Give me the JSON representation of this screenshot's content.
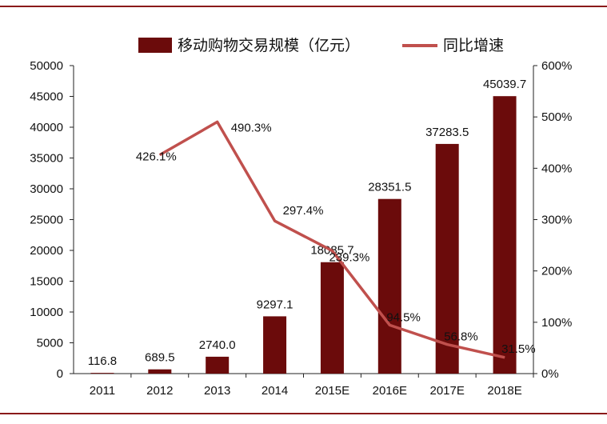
{
  "chart_data": {
    "type": "bar",
    "categories": [
      "2011",
      "2012",
      "2013",
      "2014",
      "2015E",
      "2016E",
      "2017E",
      "2018E"
    ],
    "series": [
      {
        "name": "移动购物交易规模（亿元）",
        "type": "bar",
        "axis": "left",
        "color": "#6b0b0b",
        "values": [
          116.8,
          689.5,
          2740.0,
          9297.1,
          18085.7,
          28351.5,
          37283.5,
          45039.7
        ],
        "labels": [
          "116.8",
          "689.5",
          "2740.0",
          "9297.1",
          "18085.7",
          "28351.5",
          "37283.5",
          "45039.7"
        ]
      },
      {
        "name": "同比增速",
        "type": "line",
        "axis": "right",
        "color": "#c0504d",
        "values": [
          null,
          426.1,
          490.3,
          297.4,
          239.3,
          94.5,
          56.8,
          31.5
        ],
        "labels": [
          null,
          "426.1%",
          "490.3%",
          "297.4%",
          "239.3%",
          "94.5%",
          "56.8%",
          "31.5%"
        ]
      }
    ],
    "y_left": {
      "lim": [
        0,
        50000
      ],
      "ticks": [
        "0",
        "5000",
        "10000",
        "15000",
        "20000",
        "25000",
        "30000",
        "35000",
        "40000",
        "45000",
        "50000"
      ]
    },
    "y_right": {
      "lim": [
        0,
        600
      ],
      "ticks": [
        "0%",
        "100%",
        "200%",
        "300%",
        "400%",
        "500%",
        "600%"
      ]
    },
    "legend_position": "top",
    "grid": false,
    "frame_color": "#8a1a1a"
  }
}
